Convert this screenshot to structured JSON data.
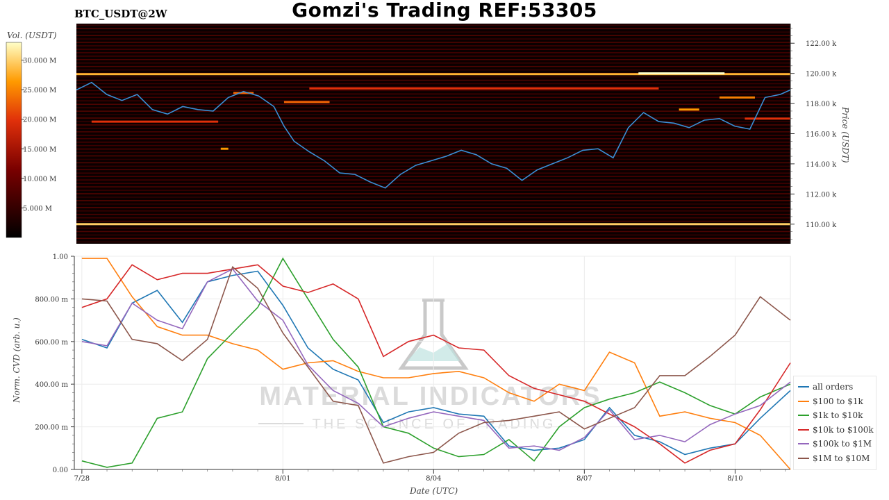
{
  "header": {
    "title": "Gomzi's Trading REF:53305",
    "symbol": "BTC_USDT@2W"
  },
  "colors": {
    "price_line": "#3a8fd6",
    "heatmap_bg": "#0b0000",
    "watermark": "#cfcfcf"
  },
  "watermark": {
    "line1": "MATERIAL INDICATORS",
    "line2": "THE SCIENCE OF TRADING"
  },
  "chart_data": [
    {
      "type": "heatmap",
      "title": "",
      "colorbar": {
        "label": "Vol. (USDT)",
        "ticks": [
          "30.000 M",
          "25.000 M",
          "20.000 M",
          "15.000 M",
          "10.000 M",
          "5.000 M"
        ],
        "range": [
          0,
          33
        ]
      },
      "y_axis": {
        "label": "Price (USDT)",
        "range": [
          108.7,
          123.3
        ],
        "ticks": [
          "122.00 k",
          "120.00 k",
          "118.00 k",
          "116.00 k",
          "114.00 k",
          "112.00 k",
          "110.00 k"
        ],
        "tick_values": [
          122,
          120,
          118,
          116,
          114,
          112,
          110
        ]
      },
      "x_range_days": [
        0,
        14.1
      ],
      "liquidity_bands": [
        {
          "price": 119.95,
          "intensity": 0.85,
          "from": 0,
          "to": 14.1
        },
        {
          "price": 110.0,
          "intensity": 0.9,
          "from": 0,
          "to": 14.1
        },
        {
          "price": 119.0,
          "intensity": 0.6,
          "from": 4.6,
          "to": 11.5
        },
        {
          "price": 118.1,
          "intensity": 0.7,
          "from": 4.1,
          "to": 5.0
        },
        {
          "price": 116.8,
          "intensity": 0.6,
          "from": 0.3,
          "to": 2.8
        },
        {
          "price": 117.6,
          "intensity": 0.8,
          "from": 11.9,
          "to": 12.3
        },
        {
          "price": 118.4,
          "intensity": 0.75,
          "from": 12.7,
          "to": 13.4
        },
        {
          "price": 117.0,
          "intensity": 0.6,
          "from": 13.2,
          "to": 14.1
        },
        {
          "price": 120.0,
          "intensity": 1.0,
          "from": 11.1,
          "to": 12.8
        },
        {
          "price": 115.0,
          "intensity": 0.8,
          "from": 2.85,
          "to": 3.0
        },
        {
          "price": 118.7,
          "intensity": 0.7,
          "from": 3.1,
          "to": 3.5
        }
      ],
      "price_series": {
        "name": "",
        "x_days": [
          0,
          0.3,
          0.6,
          0.9,
          1.2,
          1.5,
          1.8,
          2.1,
          2.4,
          2.7,
          3.0,
          3.3,
          3.6,
          3.9,
          4.1,
          4.3,
          4.6,
          4.9,
          5.2,
          5.5,
          5.8,
          6.1,
          6.4,
          6.7,
          7.0,
          7.3,
          7.6,
          7.9,
          8.2,
          8.5,
          8.8,
          9.1,
          9.4,
          9.7,
          10.0,
          10.3,
          10.6,
          10.9,
          11.2,
          11.5,
          11.8,
          12.1,
          12.4,
          12.7,
          13.0,
          13.3,
          13.6,
          13.9,
          14.1
        ],
        "values": [
          118.9,
          119.4,
          118.6,
          118.2,
          118.6,
          117.6,
          117.3,
          117.8,
          117.6,
          117.5,
          118.4,
          118.8,
          118.5,
          117.8,
          116.5,
          115.5,
          114.8,
          114.2,
          113.4,
          113.3,
          112.8,
          112.4,
          113.3,
          113.9,
          114.2,
          114.5,
          114.9,
          114.6,
          114.0,
          113.7,
          112.9,
          113.6,
          114.0,
          114.4,
          114.9,
          115.0,
          114.4,
          116.4,
          117.4,
          116.8,
          116.7,
          116.4,
          116.9,
          117.0,
          116.5,
          116.3,
          118.4,
          118.6,
          118.9
        ]
      }
    },
    {
      "type": "line",
      "title": "",
      "xlabel": "Date (UTC)",
      "ylabel": "Norm. CVD (arb. u.)",
      "ylim": [
        0,
        1
      ],
      "y_ticks": [
        "0.00",
        "200.00 m",
        "400.00 m",
        "600.00 m",
        "800.00 m",
        "1.00"
      ],
      "y_tick_values": [
        0,
        0.2,
        0.4,
        0.6,
        0.8,
        1.0
      ],
      "x_ticks": [
        "7/28",
        "8/01",
        "8/04",
        "8/07",
        "8/10"
      ],
      "x_tick_days": [
        0,
        4,
        7,
        10,
        13
      ],
      "x_range_days": [
        -0.15,
        14.1
      ],
      "legend_position": "right",
      "x_days": [
        0,
        0.5,
        1,
        1.5,
        2,
        2.5,
        3,
        3.5,
        4,
        4.5,
        5,
        5.5,
        6,
        6.5,
        7,
        7.5,
        8,
        8.5,
        9,
        9.5,
        10,
        10.5,
        11,
        11.5,
        12,
        12.5,
        13,
        13.5,
        14.1
      ],
      "series": [
        {
          "name": "all orders",
          "color": "#1f77b4",
          "values": [
            0.61,
            0.57,
            0.78,
            0.84,
            0.69,
            0.88,
            0.91,
            0.93,
            0.77,
            0.57,
            0.47,
            0.42,
            0.22,
            0.27,
            0.29,
            0.26,
            0.25,
            0.11,
            0.09,
            0.1,
            0.14,
            0.29,
            0.16,
            0.13,
            0.07,
            0.1,
            0.12,
            0.24,
            0.37
          ]
        },
        {
          "name": "$100 to $1k",
          "color": "#ff7f0e",
          "values": [
            0.99,
            0.99,
            0.81,
            0.67,
            0.63,
            0.63,
            0.59,
            0.56,
            0.47,
            0.5,
            0.51,
            0.46,
            0.43,
            0.43,
            0.45,
            0.46,
            0.43,
            0.36,
            0.32,
            0.4,
            0.37,
            0.55,
            0.5,
            0.25,
            0.27,
            0.24,
            0.22,
            0.16,
            0.0
          ]
        },
        {
          "name": "$1k to $10k",
          "color": "#2ca02c",
          "values": [
            0.04,
            0.01,
            0.03,
            0.24,
            0.27,
            0.52,
            0.64,
            0.76,
            0.99,
            0.8,
            0.61,
            0.48,
            0.2,
            0.17,
            0.1,
            0.06,
            0.07,
            0.14,
            0.04,
            0.2,
            0.29,
            0.33,
            0.36,
            0.41,
            0.36,
            0.3,
            0.26,
            0.34,
            0.4
          ]
        },
        {
          "name": "$10k to $100k",
          "color": "#d62728",
          "values": [
            0.76,
            0.8,
            0.96,
            0.89,
            0.92,
            0.92,
            0.94,
            0.96,
            0.86,
            0.83,
            0.87,
            0.8,
            0.53,
            0.6,
            0.63,
            0.57,
            0.56,
            0.44,
            0.38,
            0.35,
            0.32,
            0.26,
            0.2,
            0.12,
            0.03,
            0.09,
            0.12,
            0.28,
            0.5
          ]
        },
        {
          "name": "$100k to $1M",
          "color": "#9467bd",
          "values": [
            0.6,
            0.58,
            0.78,
            0.7,
            0.66,
            0.88,
            0.94,
            0.79,
            0.7,
            0.49,
            0.37,
            0.31,
            0.2,
            0.24,
            0.27,
            0.25,
            0.23,
            0.1,
            0.11,
            0.09,
            0.15,
            0.28,
            0.14,
            0.16,
            0.13,
            0.21,
            0.26,
            0.3,
            0.41
          ]
        },
        {
          "name": "$1M to $10M",
          "color": "#8c564b",
          "values": [
            0.8,
            0.79,
            0.61,
            0.59,
            0.51,
            0.61,
            0.95,
            0.85,
            0.64,
            0.48,
            0.32,
            0.3,
            0.03,
            0.06,
            0.08,
            0.17,
            0.22,
            0.23,
            0.25,
            0.27,
            0.19,
            0.24,
            0.29,
            0.44,
            0.44,
            0.53,
            0.63,
            0.81,
            0.7
          ]
        }
      ]
    }
  ]
}
